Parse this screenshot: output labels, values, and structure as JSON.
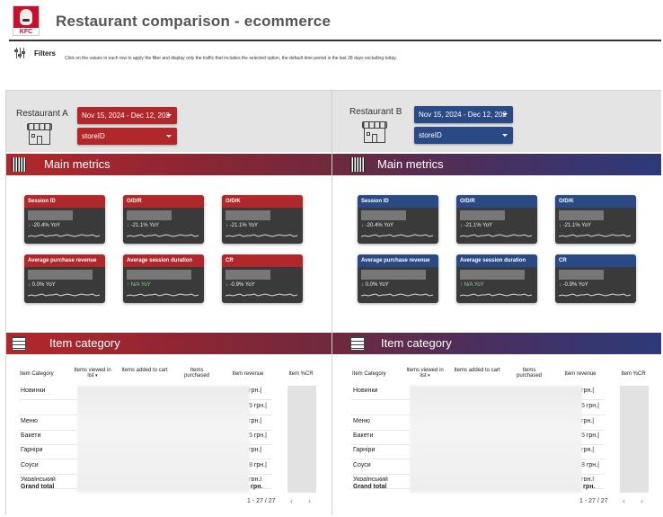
{
  "header": {
    "title": "Restaurant comparison - ecommerce",
    "logo_text": "KFC"
  },
  "filters": {
    "label": "Filters",
    "description": "Click on the values in each row to apply the filter and display only the traffic that includes the selected option, the default time period is the last 28 days excluding today."
  },
  "restaurant_a": {
    "label": "Restaurant A",
    "date_range": "Nov 15, 2024 - Dec 12, 202",
    "store_select": "storeID",
    "main_metrics_title": "Main metrics",
    "item_category_title": "Item category"
  },
  "restaurant_b": {
    "label": "Restaurant B",
    "date_range": "Nov 15, 2024 - Dec 12, 202",
    "store_select": "storeID",
    "main_metrics_title": "Main metrics",
    "item_category_title": "Item category"
  },
  "kpis": [
    {
      "title": "Session ID",
      "yoy": "-20.4% YoY",
      "dir": "down"
    },
    {
      "title": "O/D/R",
      "yoy": "-21.1% YoY",
      "dir": "down"
    },
    {
      "title": "O/D/K",
      "yoy": "-21.1% YoY",
      "dir": "down"
    },
    {
      "title": "Average purchase revenue",
      "yoy": "0.0% YoY",
      "dir": "down"
    },
    {
      "title": "Average session duration",
      "yoy": "N/A YoY",
      "dir": "up"
    },
    {
      "title": "CR",
      "yoy": "-0.9% YoY",
      "dir": "down"
    }
  ],
  "table": {
    "columns": [
      "Item Category",
      "Items viewed in list",
      "Items added to cart",
      "Items purchased",
      "Item revenue",
      "Item %CR"
    ],
    "rows": [
      {
        "label": "Новинки",
        "revenue": "грн.|"
      },
      {
        "label": "",
        "revenue": "5 грн.|"
      },
      {
        "label": "Меню",
        "revenue": "грн.|"
      },
      {
        "label": "Бакети",
        "revenue": "5 грн.|"
      },
      {
        "label": "Гарніри",
        "revenue": "грн.|"
      },
      {
        "label": "Соуси",
        "revenue": "8 грн.|"
      },
      {
        "label": "Український",
        "revenue": "грн.|"
      }
    ],
    "grand_total_label": "Grand total",
    "grand_total_revenue": "грн.",
    "pagination": "1 - 27 / 27",
    "prev_icon": "‹",
    "next_icon": "›"
  },
  "colors": {
    "accent_a": "#b2282a",
    "accent_b": "#2a4a85"
  }
}
